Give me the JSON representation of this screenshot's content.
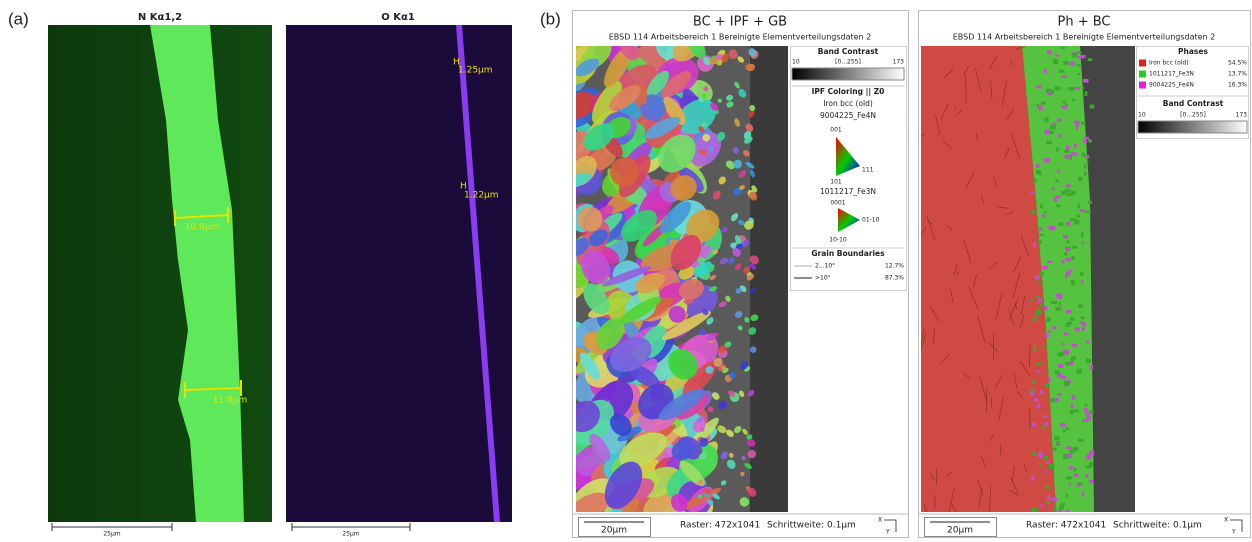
{
  "panel_a": {
    "label": "(a)",
    "maps": [
      {
        "title": "N Kα1,2",
        "measurements": [
          "10.9μm",
          "11.8μm"
        ],
        "scale": "25μm"
      },
      {
        "title": "O Kα1",
        "measurements": [
          "1.25μm",
          "1.22μm"
        ],
        "scale": "25μm"
      }
    ]
  },
  "panel_b": {
    "label": "(b)",
    "maps": [
      {
        "title": "BC + IPF + GB",
        "subtitle": "EBSD 114 Arbeitsbereich 1 Bereinigte Elementverteilungsdaten 2",
        "band_contrast": {
          "title": "Band Contrast",
          "min": "10",
          "range": "[0...255]",
          "max": "173"
        },
        "ipf": {
          "title": "IPF Coloring || Z0",
          "cubic_phases": [
            "Iron bcc (old)",
            "9004225_Fe4N"
          ],
          "cubic_corners": [
            "001",
            "101",
            "111"
          ],
          "hex_phase": "1011217_Fe3N",
          "hex_corners": [
            "0001",
            "10-10",
            "01-10"
          ]
        },
        "grain_boundaries": {
          "title": "Grain Boundaries",
          "rows": [
            [
              "2...10°",
              "12.7%"
            ],
            [
              ">10°",
              "87.3%"
            ]
          ]
        },
        "footer": {
          "scale": "20μm",
          "raster": "Raster: 472x1041",
          "step": "Schrittweite: 0.1μm",
          "axes": [
            "X",
            "Y"
          ]
        }
      },
      {
        "title": "Ph + BC",
        "subtitle": "EBSD 114 Arbeitsbereich 1 Bereinigte Elementverteilungsdaten 2",
        "phases": {
          "title": "Phases",
          "rows": [
            {
              "name": "Iron bcc (old)",
              "color": "#e02020",
              "share": "54.5%"
            },
            {
              "name": "1011217_Fe3N",
              "color": "#20d020",
              "share": "13.7%"
            },
            {
              "name": "9004225_Fe4N",
              "color": "#e020e0",
              "share": "16.3%"
            }
          ]
        },
        "band_contrast": {
          "title": "Band Contrast",
          "min": "10",
          "range": "[0...255]",
          "max": "173"
        },
        "footer": {
          "scale": "20μm",
          "raster": "Raster: 472x1041",
          "step": "Schrittweite: 0.1μm",
          "axes": [
            "X",
            "Y"
          ]
        }
      }
    ]
  }
}
